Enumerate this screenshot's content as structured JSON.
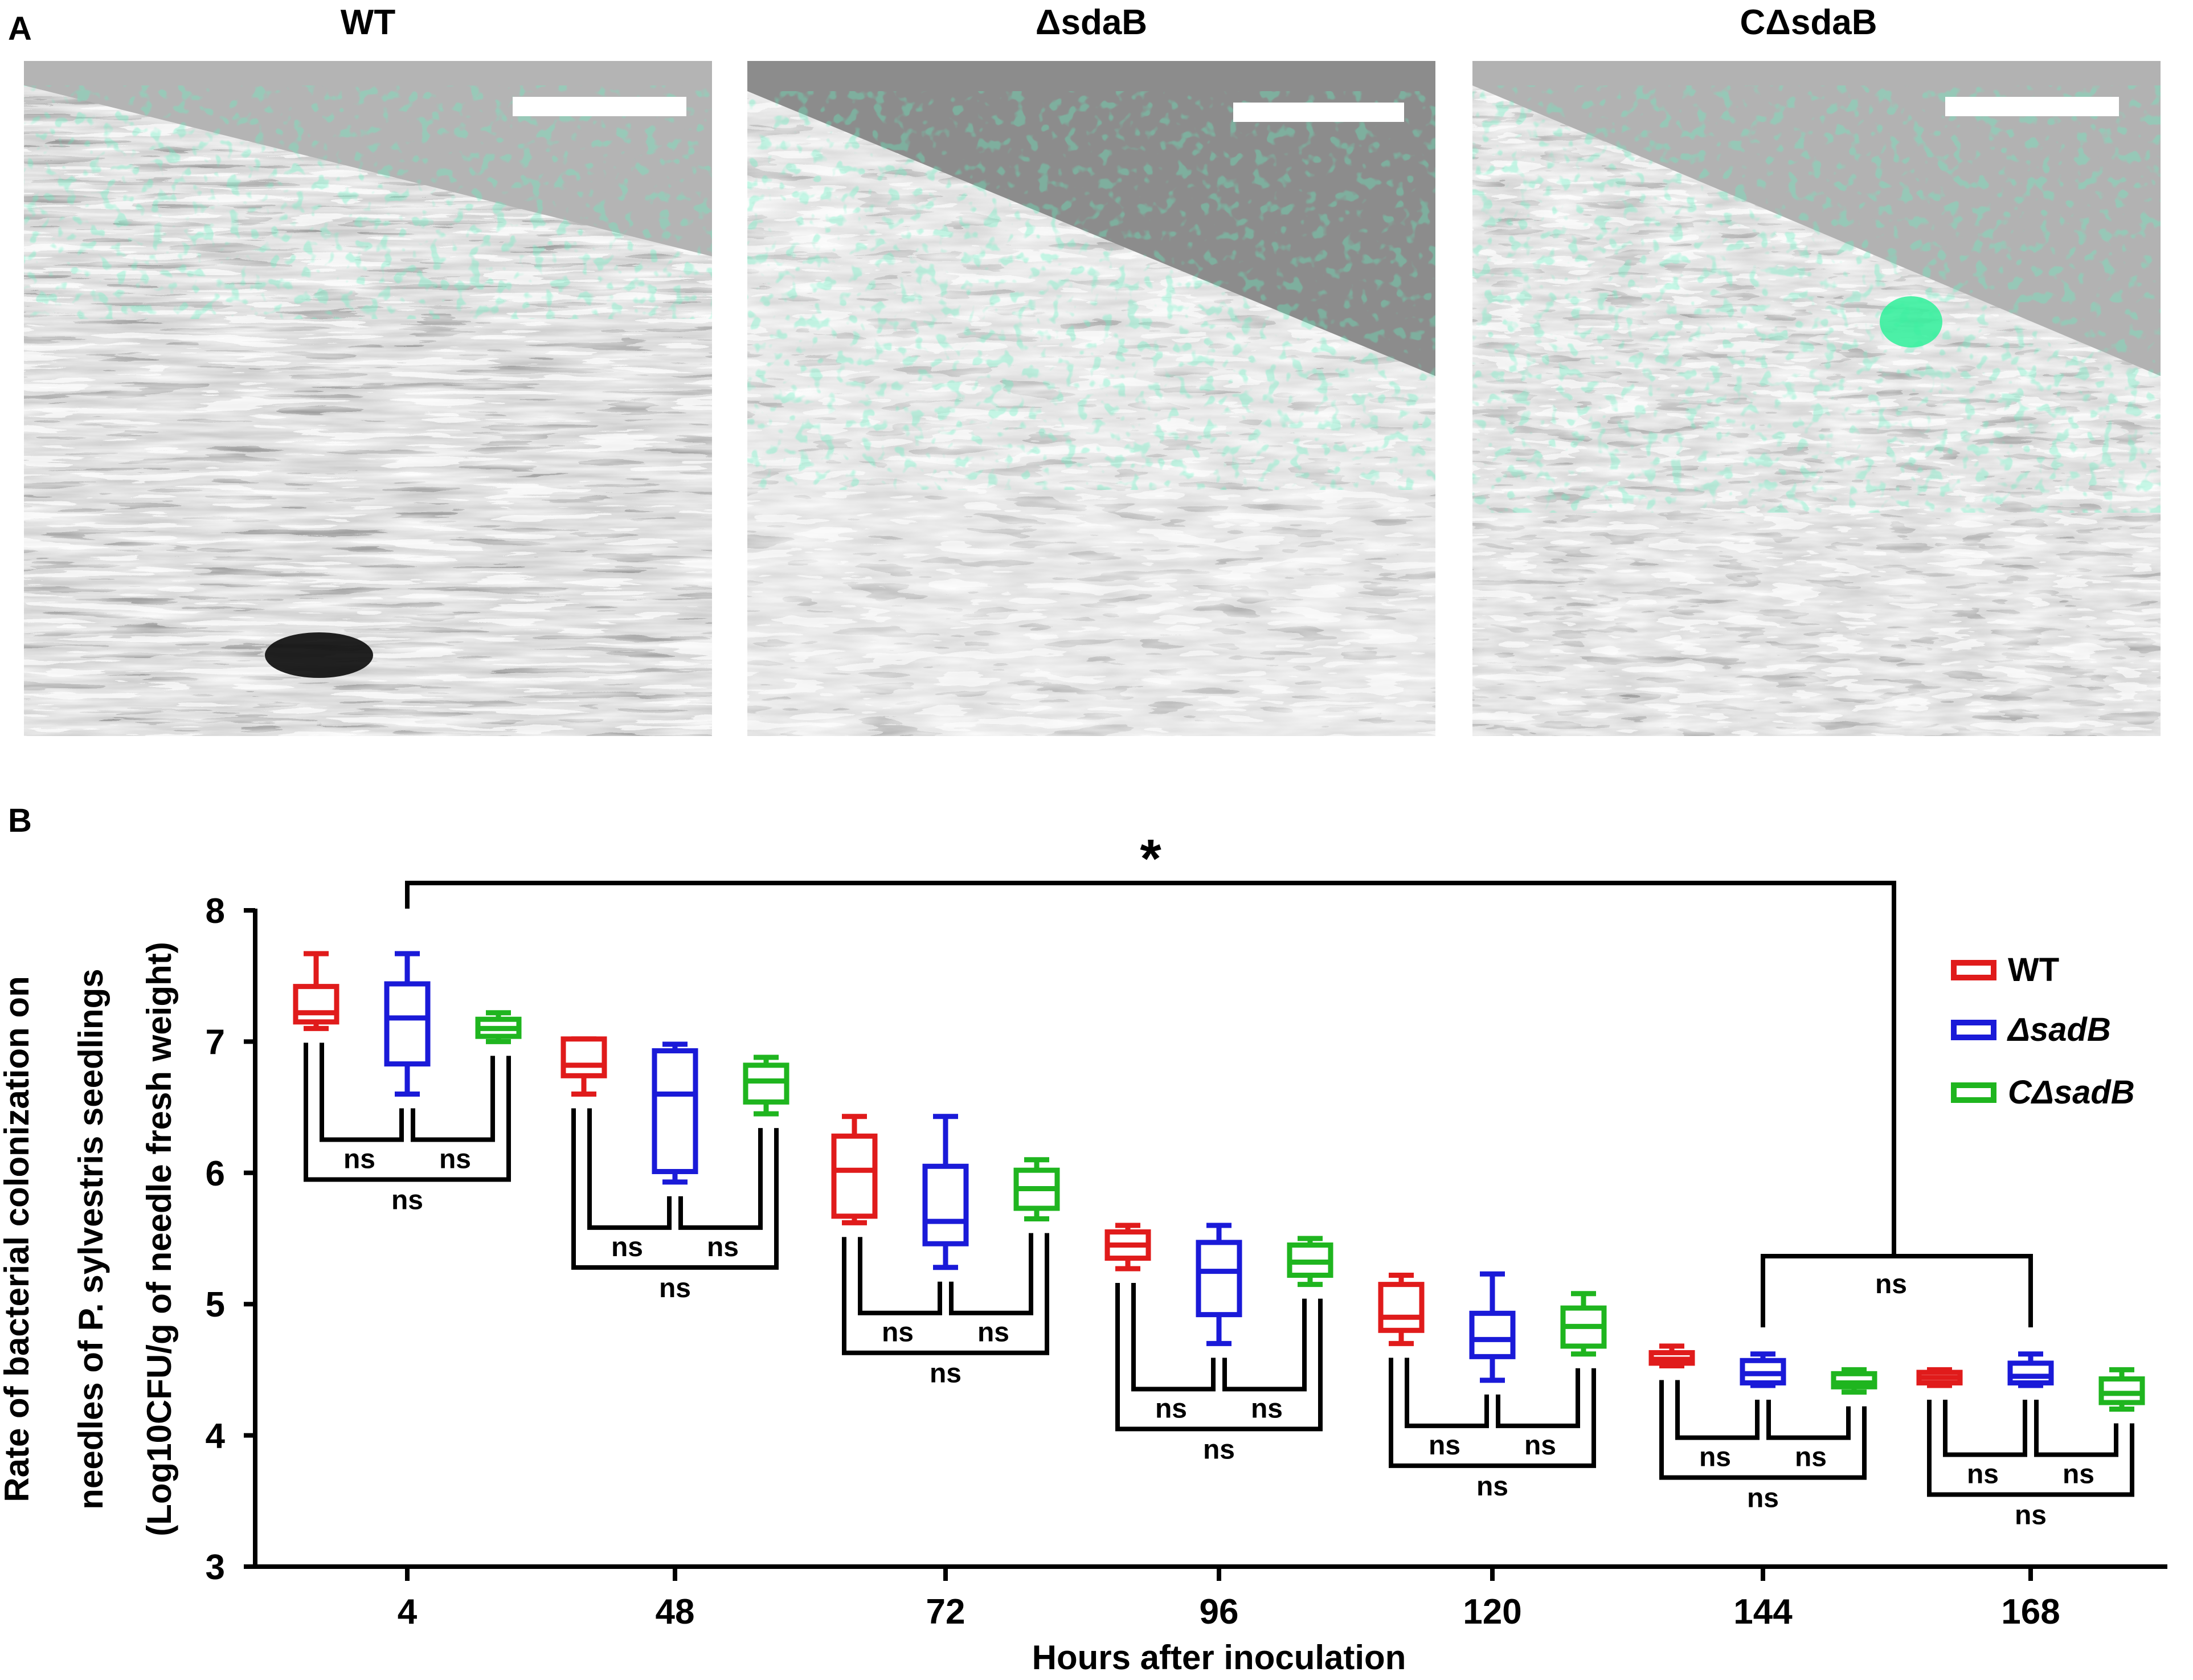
{
  "panel_a": {
    "label": "A",
    "images": [
      {
        "title": "WT"
      },
      {
        "title": "ΔsdaB"
      },
      {
        "title": "CΔsdaB"
      }
    ]
  },
  "panel_b": {
    "label": "B"
  },
  "colors": {
    "WT": "#e01b1b",
    "dsadB": "#1a1ad8",
    "CdsadB": "#1fb51f",
    "fluor": "#22e38a"
  },
  "chart_data": {
    "type": "box",
    "xlabel": "Hours after inoculation",
    "ylabel_lines": [
      "Rate of bacterial colonization on",
      "needles of P. sylvestris seedlings",
      "(Log10CFU/g of needle fresh weight)"
    ],
    "ylim": [
      3,
      8
    ],
    "yticks": [
      3,
      4,
      5,
      6,
      7,
      8
    ],
    "categories": [
      "4",
      "48",
      "72",
      "96",
      "120",
      "144",
      "168"
    ],
    "legend": {
      "position": "right",
      "entries": [
        "WT",
        "ΔsadB",
        "CΔsadB"
      ]
    },
    "series": [
      {
        "name": "WT",
        "boxes": [
          {
            "min": 7.1,
            "q1": 7.15,
            "median": 7.22,
            "q3": 7.42,
            "max": 7.67
          },
          {
            "min": 6.6,
            "q1": 6.74,
            "median": 6.82,
            "q3": 7.02,
            "max": 7.02
          },
          {
            "min": 5.62,
            "q1": 5.67,
            "median": 6.02,
            "q3": 6.28,
            "max": 6.43
          },
          {
            "min": 5.27,
            "q1": 5.35,
            "median": 5.45,
            "q3": 5.55,
            "max": 5.6
          },
          {
            "min": 4.7,
            "q1": 4.8,
            "median": 4.9,
            "q3": 5.15,
            "max": 5.22
          },
          {
            "min": 4.53,
            "q1": 4.55,
            "median": 4.58,
            "q3": 4.63,
            "max": 4.68
          },
          {
            "min": 4.38,
            "q1": 4.4,
            "median": 4.44,
            "q3": 4.48,
            "max": 4.5
          }
        ]
      },
      {
        "name": "ΔsadB",
        "boxes": [
          {
            "min": 6.6,
            "q1": 6.83,
            "median": 7.18,
            "q3": 7.44,
            "max": 7.67
          },
          {
            "min": 5.93,
            "q1": 6.01,
            "median": 6.6,
            "q3": 6.93,
            "max": 6.98
          },
          {
            "min": 5.28,
            "q1": 5.46,
            "median": 5.63,
            "q3": 6.05,
            "max": 6.43
          },
          {
            "min": 4.7,
            "q1": 4.92,
            "median": 5.25,
            "q3": 5.47,
            "max": 5.6
          },
          {
            "min": 4.42,
            "q1": 4.6,
            "median": 4.73,
            "q3": 4.93,
            "max": 5.23
          },
          {
            "min": 4.38,
            "q1": 4.4,
            "median": 4.47,
            "q3": 4.57,
            "max": 4.62
          },
          {
            "min": 4.38,
            "q1": 4.4,
            "median": 4.45,
            "q3": 4.55,
            "max": 4.62
          }
        ]
      },
      {
        "name": "CΔsadB",
        "boxes": [
          {
            "min": 7.0,
            "q1": 7.04,
            "median": 7.1,
            "q3": 7.17,
            "max": 7.22
          },
          {
            "min": 6.45,
            "q1": 6.54,
            "median": 6.7,
            "q3": 6.82,
            "max": 6.88
          },
          {
            "min": 5.65,
            "q1": 5.73,
            "median": 5.88,
            "q3": 6.02,
            "max": 6.1
          },
          {
            "min": 5.15,
            "q1": 5.22,
            "median": 5.32,
            "q3": 5.45,
            "max": 5.5
          },
          {
            "min": 4.62,
            "q1": 4.68,
            "median": 4.83,
            "q3": 4.97,
            "max": 5.08
          },
          {
            "min": 4.33,
            "q1": 4.37,
            "median": 4.4,
            "q3": 4.47,
            "max": 4.5
          },
          {
            "min": 4.2,
            "q1": 4.25,
            "median": 4.32,
            "q3": 4.43,
            "max": 4.5
          }
        ]
      }
    ],
    "annotations": {
      "group_test": "ns",
      "overall_test": "*",
      "overall_group_test": "ns"
    }
  }
}
